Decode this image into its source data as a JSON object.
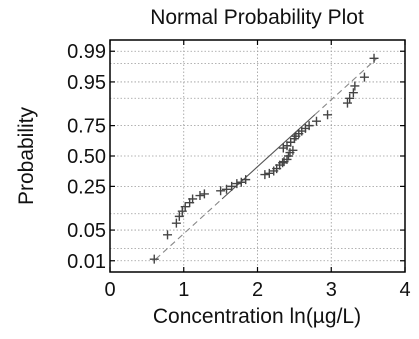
{
  "chart_data": {
    "type": "scatter",
    "title": "Normal Probability Plot",
    "xlabel": "Concentration ln(µg/L)",
    "ylabel": "Probability",
    "xlim": [
      0,
      4
    ],
    "x_ticks": [
      0,
      1,
      2,
      3,
      4
    ],
    "x_tick_labels": [
      "0",
      "1",
      "2",
      "3",
      "4"
    ],
    "y_scale": "normal-probability",
    "ylim": [
      0.005,
      0.995
    ],
    "y_ticks": [
      0.01,
      0.05,
      0.25,
      0.5,
      0.75,
      0.95,
      0.99
    ],
    "y_tick_labels": [
      "0.01",
      "0.05",
      "0.25",
      "0.50",
      "0.75",
      "0.95",
      "0.99"
    ],
    "y_minor_gridlines": [
      0.02,
      0.1,
      0.9,
      0.98
    ],
    "grid": true,
    "marker": "+",
    "colors": {
      "points": "#444444",
      "fit_solid": "#555555",
      "fit_dashed": "#888888",
      "grid": "#9a9a9a",
      "axes": "#000000"
    },
    "series": [
      {
        "values": [
          [
            0.6,
            0.011
          ],
          [
            0.78,
            0.04
          ],
          [
            0.9,
            0.068
          ],
          [
            0.94,
            0.09
          ],
          [
            0.98,
            0.11
          ],
          [
            1.02,
            0.13
          ],
          [
            1.08,
            0.15
          ],
          [
            1.12,
            0.17
          ],
          [
            1.22,
            0.19
          ],
          [
            1.28,
            0.2
          ],
          [
            1.5,
            0.22
          ],
          [
            1.58,
            0.23
          ],
          [
            1.65,
            0.25
          ],
          [
            1.72,
            0.27
          ],
          [
            1.78,
            0.28
          ],
          [
            1.84,
            0.3
          ],
          [
            2.1,
            0.34
          ],
          [
            2.16,
            0.35
          ],
          [
            2.22,
            0.37
          ],
          [
            2.26,
            0.39
          ],
          [
            2.3,
            0.42
          ],
          [
            2.34,
            0.44
          ],
          [
            2.36,
            0.45
          ],
          [
            2.4,
            0.47
          ],
          [
            2.42,
            0.5
          ],
          [
            2.44,
            0.53
          ],
          [
            2.48,
            0.55
          ],
          [
            2.35,
            0.57
          ],
          [
            2.4,
            0.59
          ],
          [
            2.45,
            0.62
          ],
          [
            2.5,
            0.65
          ],
          [
            2.52,
            0.67
          ],
          [
            2.56,
            0.69
          ],
          [
            2.6,
            0.71
          ],
          [
            2.65,
            0.73
          ],
          [
            2.7,
            0.75
          ],
          [
            2.8,
            0.78
          ],
          [
            2.95,
            0.82
          ],
          [
            3.22,
            0.88
          ],
          [
            3.25,
            0.9
          ],
          [
            3.3,
            0.92
          ],
          [
            3.32,
            0.94
          ],
          [
            3.45,
            0.96
          ],
          [
            3.58,
            0.985
          ]
        ]
      }
    ],
    "fit_line": {
      "x": [
        0.62,
        3.62
      ],
      "y": [
        0.011,
        0.985
      ]
    }
  }
}
